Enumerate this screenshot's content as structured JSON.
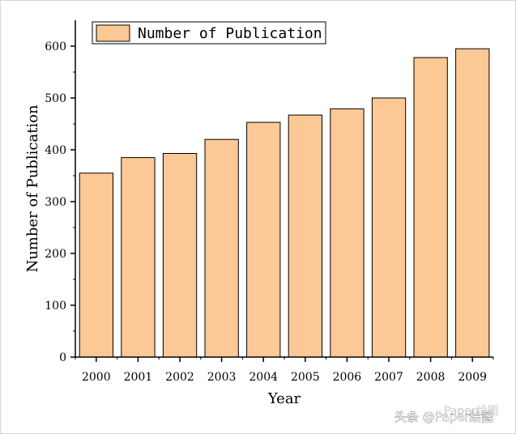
{
  "chart_data": {
    "type": "bar",
    "categories": [
      "2000",
      "2001",
      "2002",
      "2003",
      "2004",
      "2005",
      "2006",
      "2007",
      "2008",
      "2009"
    ],
    "series": [
      {
        "name": "Number of Publication",
        "values": [
          355,
          385,
          393,
          420,
          453,
          467,
          479,
          500,
          578,
          595
        ]
      }
    ],
    "title": "",
    "xlabel": "Year",
    "ylabel": "Number of Publication",
    "ylim": [
      0,
      650
    ],
    "yticks": [
      0,
      100,
      200,
      300,
      400,
      500,
      600
    ],
    "grid": false,
    "legend": "top-left",
    "bar_color": "#fcc896",
    "bar_edge": "#000000"
  },
  "watermark": {
    "faint": "Paper绘图",
    "main": "头条 @Paper绘图"
  }
}
